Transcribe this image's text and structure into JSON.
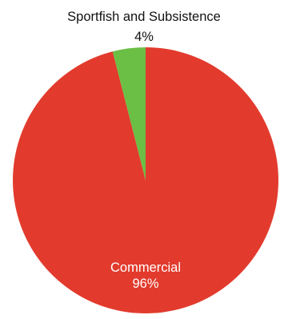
{
  "chart_data": {
    "type": "pie",
    "title": "",
    "slices": [
      {
        "label": "Sportfish and Subsistence",
        "value_label": "4%",
        "value": 4,
        "color": "#6bbf45"
      },
      {
        "label": "Commercial",
        "value_label": "96%",
        "value": 96,
        "color": "#e23b2d"
      }
    ]
  }
}
